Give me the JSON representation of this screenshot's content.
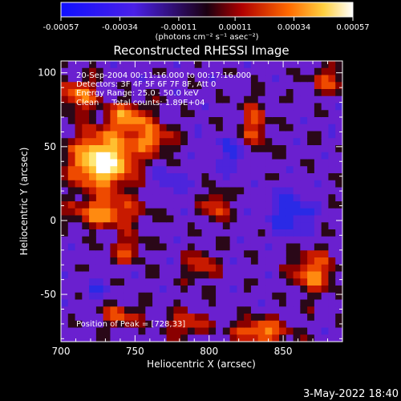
{
  "chart_data": {
    "type": "heatmap",
    "title": "Reconstructed RHESSI Image",
    "xlabel": "Heliocentric X (arcsec)",
    "ylabel": "Heliocentric Y (arcsec)",
    "xlim": [
      700,
      890
    ],
    "ylim": [
      -82,
      108
    ],
    "x_ticks": [
      700,
      750,
      800,
      850
    ],
    "y_ticks": [
      -50,
      0,
      50,
      100
    ],
    "colorbar": {
      "range": [
        -0.00057,
        0.00057
      ],
      "ticks": [
        "-0.00057",
        "-0.00034",
        "-0.00011",
        "0.00011",
        "0.00034",
        "0.00057"
      ],
      "tick_values": [
        -0.00057,
        -0.00034,
        -0.00011,
        0.00011,
        0.00034,
        0.00057
      ],
      "unit_label": "(photons cm⁻² s⁻¹ asec⁻²)"
    },
    "annotations": [
      "20-Sep-2004 00:11:16.000 to 00:17:16.000",
      "Detectors: 3F 4F 5F 6F 7F 8F, Att 0",
      "Energy Range: 25.0 - 50.0 keV",
      "Clean     Total counts: 1.89E+04"
    ],
    "peak_label": "Position of Peak = [728,33]",
    "peak_position": [
      728,
      33
    ],
    "colors": {
      "negative": "#1c1cff",
      "mid": "#6a1fd0",
      "positive_low": "#c01010",
      "positive_mid": "#ff7a00",
      "positive_high": "#ffffff"
    }
  },
  "footer": {
    "date": "3-May-2022 18:40"
  }
}
